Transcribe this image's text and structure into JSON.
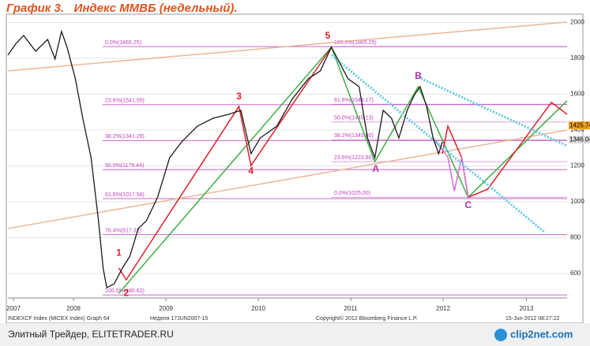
{
  "title": "График 3.   Индекс ММВБ (недельный).",
  "chart_data": {
    "type": "line",
    "x": [
      2007.79,
      2007.88,
      2007.96,
      2008.09,
      2008.22,
      2008.3,
      2008.37,
      2008.43,
      2008.52,
      2008.6,
      2008.69,
      2008.77,
      2008.82,
      2008.86,
      2008.94,
      2009.03,
      2009.11,
      2009.2,
      2009.29,
      2009.41,
      2009.54,
      2009.67,
      2009.84,
      2010.01,
      2010.18,
      2010.31,
      2010.37,
      2010.42,
      2010.52,
      2010.7,
      2010.87,
      2011.04,
      2011.17,
      2011.29,
      2011.38,
      2011.47,
      2011.59,
      2011.68,
      2011.76,
      2011.85,
      2011.94,
      2012.02,
      2012.11,
      2012.19,
      2012.25,
      2012.32,
      2012.39,
      2012.45,
      2012.49
    ],
    "values": [
      1818,
      1884,
      1927,
      1840,
      1905,
      1796,
      1950,
      1862,
      1686,
      1466,
      1246,
      895,
      631,
      521,
      543,
      631,
      697,
      851,
      895,
      1026,
      1246,
      1334,
      1422,
      1466,
      1488,
      1510,
      1378,
      1268,
      1356,
      1422,
      1576,
      1686,
      1730,
      1862,
      1774,
      1686,
      1642,
      1356,
      1246,
      1510,
      1466,
      1356,
      1510,
      1598,
      1642,
      1532,
      1356,
      1268,
      1334
    ],
    "color": "#1a1a1a",
    "xlim": [
      2007.79,
      2013.84
    ],
    "ylim": [
      464,
      2046
    ],
    "xticks": [
      {
        "value": 2007.85,
        "label": "2007"
      },
      {
        "value": 2008.5,
        "label": "2008"
      },
      {
        "value": 2009.5,
        "label": "2009"
      },
      {
        "value": 2010.5,
        "label": "2010"
      },
      {
        "value": 2011.5,
        "label": "2011"
      },
      {
        "value": 2012.5,
        "label": "2012"
      },
      {
        "value": 2013.4,
        "label": "2013"
      }
    ],
    "yticks": [
      600,
      800,
      1000,
      1200,
      1400,
      1600,
      1800,
      2000
    ],
    "grid": true,
    "fib_color": "#c040c0",
    "fib_levels": [
      {
        "value": 1865.25,
        "label": "0.0%(1865.25)"
      },
      {
        "value": 1541.55,
        "label": "23.6%(1541.55)"
      },
      {
        "value": 1341.29,
        "label": "38.2%(1341.29)"
      },
      {
        "value": 1179.44,
        "label": "50.0%(1179.44)"
      },
      {
        "value": 1017.58,
        "label": "61.8%(1017.58)"
      },
      {
        "value": 817.32,
        "label": "76.4%(817.32)"
      },
      {
        "value": 480.62,
        "label": "100.0%(480.62)"
      }
    ],
    "fib_levels_2": [
      {
        "value": 1865.25,
        "label": "100.0%(1865.25)"
      },
      {
        "value": 1544.17,
        "label": "61.8%(1544.17)"
      },
      {
        "value": 1445.13,
        "label": "50.0%(1445.13)"
      },
      {
        "value": 1345.8,
        "label": "38.2%(1345.80)"
      },
      {
        "value": 1223.8,
        "label": "23.6%(1223.80)"
      },
      {
        "value": 1025,
        "label": "0.0%(1025.00)"
      }
    ],
    "trend_lines": [
      {
        "color": "#e8b898",
        "dashed": false,
        "x": [
          2007.79,
          2013.84
        ],
        "y": [
          1730,
          2002
        ]
      },
      {
        "color": "#e8b898",
        "dashed": false,
        "x": [
          2007.79,
          2013.84
        ],
        "y": [
          851,
          1400
        ]
      },
      {
        "color": "#3cb043",
        "dashed": false,
        "x": [
          2008.99,
          2011.29,
          2011.76,
          2012.23,
          2012.77,
          2013.84
        ],
        "y": [
          490,
          1862,
          1224,
          1642,
          1025,
          1563
        ]
      },
      {
        "color": "#e0202a",
        "dashed": false,
        "x": [
          2008.99,
          2009.07,
          2010.29,
          2010.42,
          2011.29
        ],
        "y": [
          631,
          565,
          1532,
          1202,
          1862
        ]
      },
      {
        "color": "#e0202a",
        "dashed": false,
        "x": [
          2012.49,
          2012.55,
          2012.7,
          2012.77,
          2012.98,
          2013.67,
          2013.84
        ],
        "y": [
          1268,
          1422,
          1246,
          1025,
          1070,
          1554,
          1488
        ]
      },
      {
        "color": "#d070d0",
        "dashed": false,
        "x": [
          2012.39,
          2012.55,
          2012.62,
          2012.7,
          2012.77
        ],
        "y": [
          1356,
          1250,
          1060,
          1246,
          1025
        ]
      },
      {
        "color": "#5bc8e0",
        "dashed": true,
        "x": [
          2011.29,
          2013.6
        ],
        "y": [
          1818,
          829
        ]
      },
      {
        "color": "#5bc8e0",
        "dashed": true,
        "x": [
          2012.23,
          2013.84
        ],
        "y": [
          1695,
          1312
        ]
      }
    ],
    "wave_labels": [
      {
        "label": "1",
        "x": 2008.99,
        "y": 714,
        "color": "#e0202a"
      },
      {
        "label": "2",
        "x": 2009.07,
        "y": 490,
        "color": "#e0202a"
      },
      {
        "label": "3",
        "x": 2010.29,
        "y": 1585,
        "color": "#e0202a"
      },
      {
        "label": "4",
        "x": 2010.42,
        "y": 1171,
        "color": "#e0202a"
      },
      {
        "label": "5",
        "x": 2011.25,
        "y": 1923,
        "color": "#e0202a"
      },
      {
        "label": "A",
        "x": 2011.77,
        "y": 1180,
        "color": "#b030b0"
      },
      {
        "label": "B",
        "x": 2012.23,
        "y": 1699,
        "color": "#b030b0"
      },
      {
        "label": "C",
        "x": 2012.77,
        "y": 980,
        "color": "#b030b0"
      }
    ],
    "last_values": [
      {
        "value": 1425.74,
        "color": "#f0a020"
      },
      {
        "value": 1346.04,
        "color": "#dddddd"
      }
    ],
    "footer": [
      "INDEXCF Index (MICEX Index) Graph 64",
      "Неделя 17JUN2007-15",
      "Copyright© 2012 Bloomberg Finance L.P.",
      "15-Jun-2012 08:27:22"
    ]
  },
  "caption": "Элитный Трейдер, ELITETRADER.RU",
  "logo": "clip2net.com"
}
